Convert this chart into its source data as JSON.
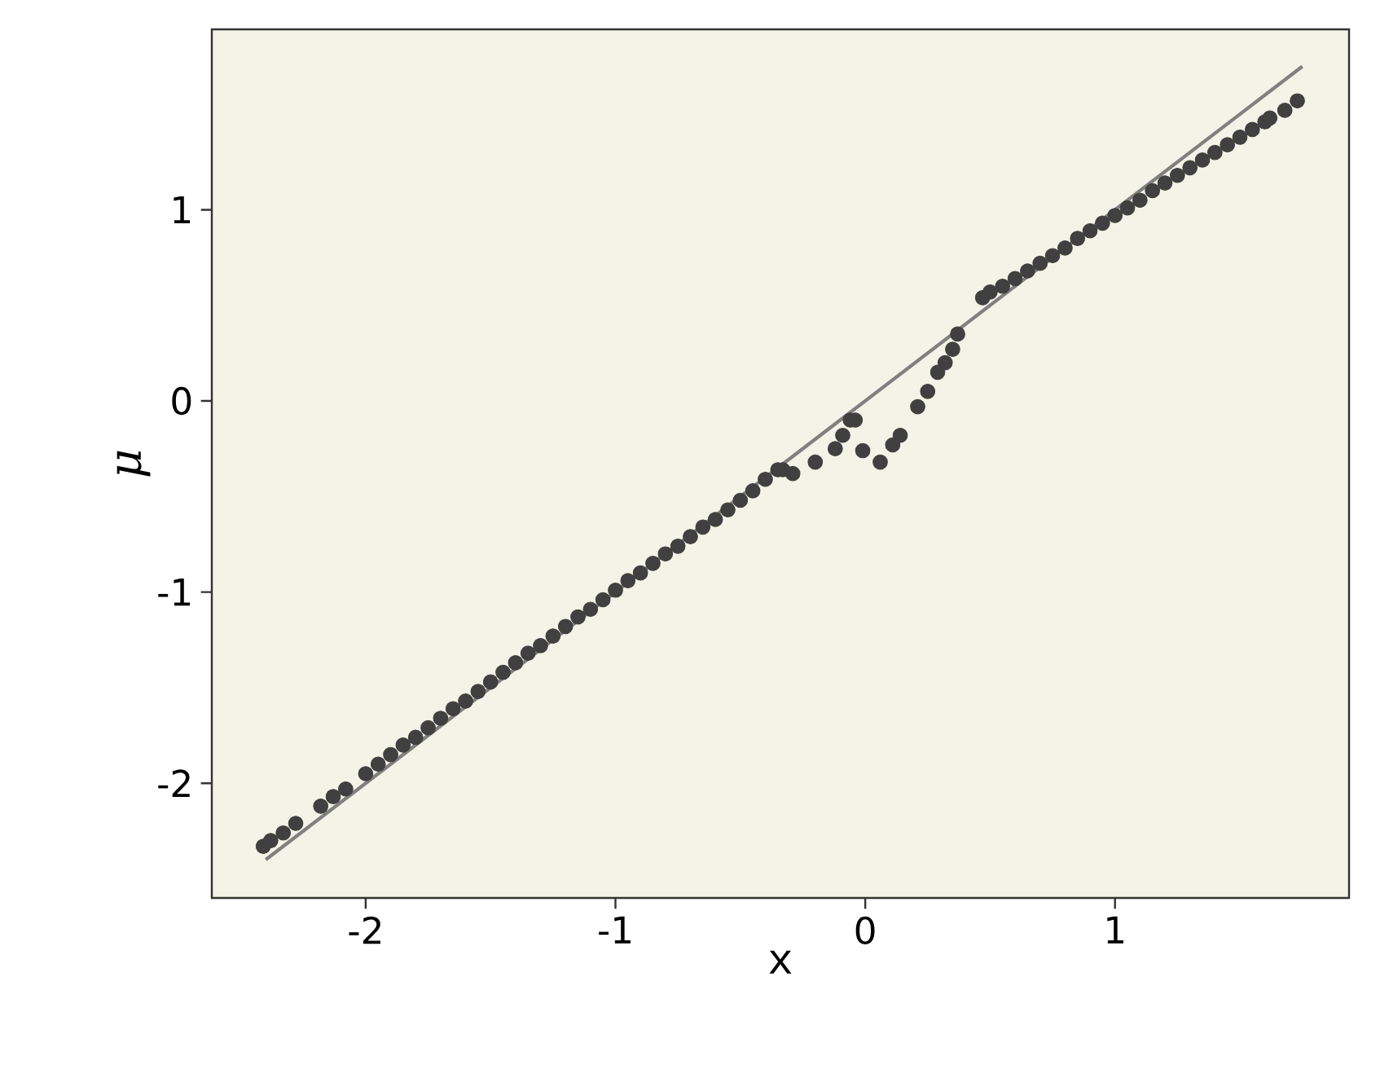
{
  "chart_data": {
    "type": "scatter",
    "xlabel": "x",
    "ylabel": "μ",
    "xlim": [
      -2.616,
      1.937
    ],
    "ylim": [
      -2.6,
      1.944
    ],
    "xticks": [
      -2,
      -1,
      0,
      1
    ],
    "yticks": [
      -2,
      -1,
      0,
      1
    ],
    "grid": false,
    "series": [
      {
        "color": "#404040",
        "x": [
          -2.41,
          -2.38,
          -2.33,
          -2.28,
          -2.18,
          -2.13,
          -2.08,
          -2.0,
          -1.95,
          -1.9,
          -1.85,
          -1.8,
          -1.75,
          -1.7,
          -1.65,
          -1.6,
          -1.55,
          -1.5,
          -1.45,
          -1.4,
          -1.35,
          -1.3,
          -1.25,
          -1.2,
          -1.15,
          -1.1,
          -1.05,
          -1.0,
          -0.95,
          -0.9,
          -0.85,
          -0.8,
          -0.75,
          -0.7,
          -0.65,
          -0.6,
          -0.55,
          -0.5,
          -0.45,
          -0.4,
          -0.35,
          -0.33,
          -0.29,
          -0.2,
          -0.12,
          -0.09,
          -0.06,
          -0.04,
          -0.01,
          0.06,
          0.11,
          0.14,
          0.21,
          0.25,
          0.29,
          0.32,
          0.35,
          0.37,
          0.47,
          0.5,
          0.55,
          0.6,
          0.65,
          0.7,
          0.75,
          0.8,
          0.85,
          0.9,
          0.95,
          1.0,
          1.05,
          1.1,
          1.15,
          1.2,
          1.25,
          1.3,
          1.35,
          1.4,
          1.45,
          1.5,
          1.55,
          1.6,
          1.62,
          1.68,
          1.73
        ],
        "values": [
          -2.33,
          -2.3,
          -2.26,
          -2.21,
          -2.12,
          -2.07,
          -2.03,
          -1.95,
          -1.9,
          -1.85,
          -1.8,
          -1.76,
          -1.71,
          -1.66,
          -1.61,
          -1.57,
          -1.52,
          -1.47,
          -1.42,
          -1.37,
          -1.32,
          -1.28,
          -1.23,
          -1.18,
          -1.13,
          -1.09,
          -1.04,
          -0.99,
          -0.94,
          -0.9,
          -0.85,
          -0.8,
          -0.76,
          -0.71,
          -0.66,
          -0.62,
          -0.57,
          -0.52,
          -0.47,
          -0.41,
          -0.36,
          -0.36,
          -0.38,
          -0.32,
          -0.25,
          -0.18,
          -0.1,
          -0.1,
          -0.26,
          -0.32,
          -0.23,
          -0.18,
          -0.03,
          0.05,
          0.15,
          0.2,
          0.27,
          0.35,
          0.54,
          0.57,
          0.6,
          0.64,
          0.68,
          0.72,
          0.76,
          0.8,
          0.85,
          0.89,
          0.93,
          0.97,
          1.01,
          1.05,
          1.1,
          1.14,
          1.18,
          1.22,
          1.26,
          1.3,
          1.34,
          1.38,
          1.42,
          1.46,
          1.48,
          1.52,
          1.57
        ]
      },
      {
        "type": "line",
        "color": "#808080",
        "x": [
          -2.4,
          1.75
        ],
        "values": [
          -2.4,
          1.75
        ]
      }
    ]
  }
}
